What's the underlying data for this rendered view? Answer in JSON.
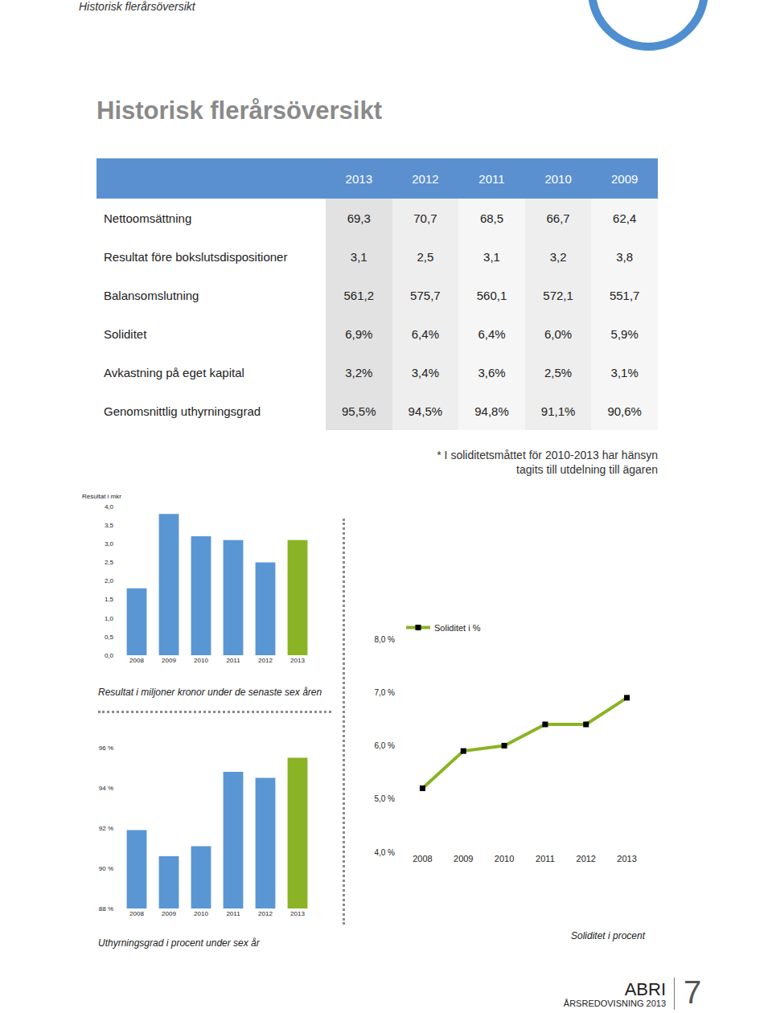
{
  "header": "Historisk flerårsöversikt",
  "title": "Historisk flerårsöversikt",
  "table": {
    "columns": [
      "2013",
      "2012",
      "2011",
      "2010",
      "2009"
    ],
    "rows": [
      [
        "Nettoomsättning",
        "69,3",
        "70,7",
        "68,5",
        "66,7",
        "62,4"
      ],
      [
        "Resultat före bokslutsdispositioner",
        "3,1",
        "2,5",
        "3,1",
        "3,2",
        "3,8"
      ],
      [
        "Balansomslutning",
        "561,2",
        "575,7",
        "560,1",
        "572,1",
        "551,7"
      ],
      [
        "Soliditet",
        "6,9%",
        "6,4%",
        "6,4%",
        "6,0%",
        "5,9%"
      ],
      [
        "Avkastning på eget kapital",
        "3,2%",
        "3,4%",
        "3,6%",
        "2,5%",
        "3,1%"
      ],
      [
        "Genomsnittlig uthyrningsgrad",
        "95,5%",
        "94,5%",
        "94,8%",
        "91,1%",
        "90,6%"
      ]
    ]
  },
  "footnote": [
    "* I soliditetsmåttet för 2010-2013 har hänsyn",
    "tagits till utdelning till ägaren"
  ],
  "footer": {
    "brand": "ABRI",
    "subtitle": "ÅRSREDOVISNING 2013",
    "page": "7"
  },
  "chart_data": [
    {
      "type": "bar",
      "title": "Resultat i miljoner kronor under de senaste sex åren",
      "ylabel": "Resultat i mkr",
      "categories": [
        "2008",
        "2009",
        "2010",
        "2011",
        "2012",
        "2013"
      ],
      "values": [
        1.8,
        3.8,
        3.2,
        3.1,
        2.5,
        3.1
      ],
      "colors": [
        "#5a96d4",
        "#5a96d4",
        "#5a96d4",
        "#5a96d4",
        "#5a96d4",
        "#8ab325"
      ],
      "ylim": [
        0,
        4
      ],
      "yticks": [
        {
          "value": 0,
          "label": "0,0"
        },
        {
          "value": 0.5,
          "label": "0,5"
        },
        {
          "value": 1,
          "label": "1,0"
        },
        {
          "value": 1.5,
          "label": "1,5"
        },
        {
          "value": 2,
          "label": "2,0"
        },
        {
          "value": 2.5,
          "label": "2,5"
        },
        {
          "value": 3,
          "label": "3,0"
        },
        {
          "value": 3.5,
          "label": "3,5"
        },
        {
          "value": 4,
          "label": "4,0"
        }
      ],
      "grid": false
    },
    {
      "type": "bar",
      "title": "Uthyrningsgrad i procent under sex år",
      "categories": [
        "2008",
        "2009",
        "2010",
        "2011",
        "2012",
        "2013"
      ],
      "values": [
        91.9,
        90.6,
        91.1,
        94.8,
        94.5,
        95.5
      ],
      "colors": [
        "#5a96d4",
        "#5a96d4",
        "#5a96d4",
        "#5a96d4",
        "#5a96d4",
        "#8ab325"
      ],
      "ylim": [
        88,
        96
      ],
      "yticks": [
        {
          "value": 88,
          "label": "88 %"
        },
        {
          "value": 90,
          "label": "90 %"
        },
        {
          "value": 92,
          "label": "92 %"
        },
        {
          "value": 94,
          "label": "94 %"
        },
        {
          "value": 96,
          "label": "96 %"
        }
      ],
      "grid": false
    },
    {
      "type": "line",
      "title": "Soliditet i procent",
      "categories": [
        "2008",
        "2009",
        "2010",
        "2011",
        "2012",
        "2013"
      ],
      "series": [
        {
          "name": "Soliditet i %",
          "color": "#8ab325",
          "marker": "square",
          "values": [
            5.2,
            5.9,
            6.0,
            6.4,
            6.4,
            6.9
          ]
        }
      ],
      "ylim": [
        4,
        8
      ],
      "yticks": [
        {
          "value": 4,
          "label": "4,0 %"
        },
        {
          "value": 5,
          "label": "5,0 %"
        },
        {
          "value": 6,
          "label": "6,0 %"
        },
        {
          "value": 7,
          "label": "7,0 %"
        },
        {
          "value": 8,
          "label": "8,0 %"
        }
      ],
      "grid": false,
      "legend": "top-left"
    }
  ]
}
